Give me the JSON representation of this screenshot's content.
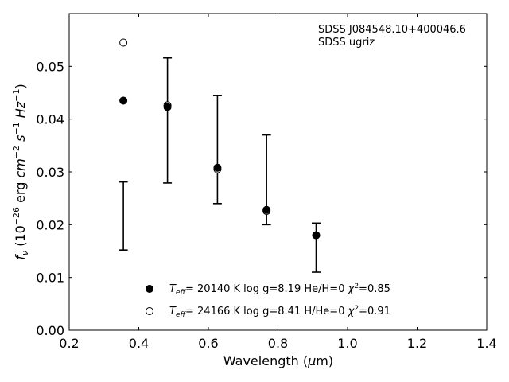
{
  "chart_data": {
    "type": "scatter",
    "xlabel": "Wavelength (μm)",
    "ylabel": "f_ν (10^-26 erg cm^-2 s^-1 Hz^-1)",
    "xlim": [
      0.2,
      1.4
    ],
    "ylim": [
      0.0,
      0.06
    ],
    "x_ticks": [
      0.2,
      0.4,
      0.6,
      0.8,
      1.0,
      1.2,
      1.4
    ],
    "y_ticks": [
      0.0,
      0.01,
      0.02,
      0.03,
      0.04,
      0.05
    ],
    "x_tick_labels": [
      "0.2",
      "0.4",
      "0.6",
      "0.8",
      "1.0",
      "1.2",
      "1.4"
    ],
    "y_tick_labels": [
      "0.00",
      "0.01",
      "0.02",
      "0.03",
      "0.04",
      "0.05"
    ],
    "grid": false,
    "legend_position": "bottom-center",
    "annotations": [
      "SDSS J084548.10+400046.6",
      "SDSS ugriz"
    ],
    "observed": {
      "x": [
        0.3557,
        0.4825,
        0.6261,
        0.7672,
        0.9097
      ],
      "y_low": [
        0.0152,
        0.0279,
        0.024,
        0.02,
        0.011
      ],
      "y_high": [
        0.0281,
        0.0516,
        0.0445,
        0.037,
        0.0203
      ]
    },
    "series": [
      {
        "teff": "20140",
        "logg": "8.19",
        "comp": "He/H=0",
        "chi2": "0.85",
        "marker": "filled",
        "x": [
          0.3557,
          0.4825,
          0.6261,
          0.7672,
          0.9097
        ],
        "y": [
          0.0435,
          0.0423,
          0.0308,
          0.0228,
          0.018
        ]
      },
      {
        "teff": "24166",
        "logg": "8.41",
        "comp": "H/He=0",
        "chi2": "0.91",
        "marker": "open",
        "x": [
          0.3557,
          0.4825,
          0.6261,
          0.7672,
          0.9097
        ],
        "y": [
          0.0545,
          0.0426,
          0.0305,
          0.0226,
          0.018
        ]
      }
    ]
  }
}
